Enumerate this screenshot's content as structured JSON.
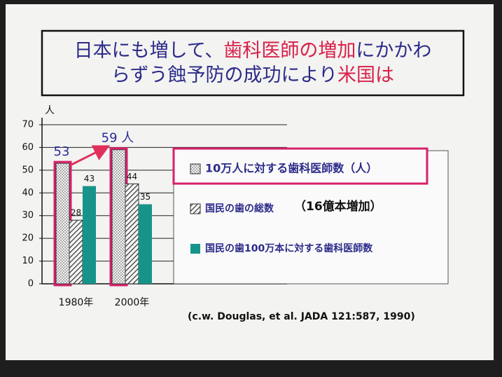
{
  "chart_data": {
    "type": "bar",
    "title_lines": [
      [
        {
          "text": "日本にも増して、",
          "color": "#2b2b8a"
        },
        {
          "text": "歯科医師の増加",
          "color": "#d8204a"
        },
        {
          "text": "にかかわ",
          "color": "#2b2b8a"
        }
      ],
      [
        {
          "text": "らずう蝕予防の成功により",
          "color": "#2b2b8a"
        },
        {
          "text": "米国は",
          "color": "#d8204a"
        }
      ]
    ],
    "y_label": "人",
    "categories": [
      "1980年",
      "2000年"
    ],
    "ylim": [
      0,
      70
    ],
    "yticks": [
      0,
      10,
      20,
      30,
      40,
      50,
      60,
      70
    ],
    "grid": true,
    "series": [
      {
        "name": "10万人に対する歯科医師数（人）",
        "color": "#d8206a",
        "pattern": "dots",
        "values": [
          53,
          59
        ],
        "value_labels": [
          "53",
          "59 人"
        ]
      },
      {
        "name": "国民の歯の総数",
        "color": "#333333",
        "pattern": "hatch",
        "values": [
          28,
          44
        ]
      },
      {
        "name": "国民の歯100万本に対する歯科医師数",
        "color": "#17948a",
        "pattern": "solid",
        "values": [
          43,
          35
        ]
      }
    ],
    "legend_note": "（16億本増加）",
    "source": "(c.w. Douglas,  et al. JADA 121:587, 1990)"
  }
}
